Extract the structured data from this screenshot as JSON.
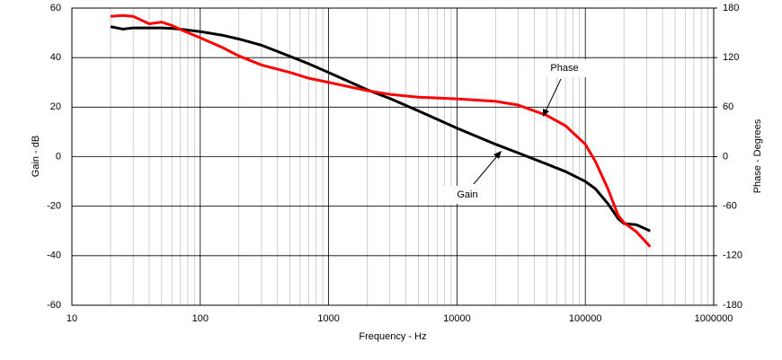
{
  "chart_data": {
    "type": "line",
    "log_x": true,
    "grid": true,
    "xlabel": "Frequency - Hz",
    "ylabel": "Gain - dB",
    "y2label": "Phase - Degrees",
    "xlim": [
      10,
      1000000
    ],
    "xticks": [
      10,
      100,
      1000,
      10000,
      100000,
      1000000
    ],
    "ylim": [
      -60,
      60
    ],
    "yticks": [
      -60,
      -40,
      -20,
      0,
      20,
      40,
      60
    ],
    "y2lim": [
      -180,
      180
    ],
    "y2ticks": [
      -180,
      -120,
      -60,
      0,
      60,
      120,
      180
    ],
    "x": [
      20,
      25,
      30,
      40,
      50,
      60,
      70,
      100,
      150,
      200,
      300,
      500,
      700,
      1000,
      2000,
      3000,
      5000,
      10000,
      20000,
      30000,
      50000,
      70000,
      100000,
      120000,
      150000,
      180000,
      200000,
      250000,
      320000
    ],
    "series": [
      {
        "name": "Gain",
        "color": "#000000",
        "values": [
          52.5,
          51.5,
          52,
          52,
          52,
          51.8,
          51.5,
          50.5,
          49,
          47.5,
          45,
          40.5,
          37.5,
          34,
          27,
          23.5,
          18.5,
          11.5,
          5,
          1.5,
          -3,
          -6,
          -10,
          -13,
          -19,
          -25,
          -27,
          -27.5,
          -30
        ]
      },
      {
        "name": "Phase",
        "color": "#ff0000",
        "axis": "y2",
        "values": [
          170,
          171,
          170,
          161,
          163,
          159,
          154,
          144,
          132,
          122,
          111,
          102,
          95,
          90,
          80,
          75.5,
          72,
          70,
          67,
          62.5,
          50,
          37.5,
          15,
          -6,
          -39,
          -71,
          -80,
          -91,
          -109
        ]
      }
    ],
    "annotations": [
      "Phase",
      "Gain"
    ]
  }
}
